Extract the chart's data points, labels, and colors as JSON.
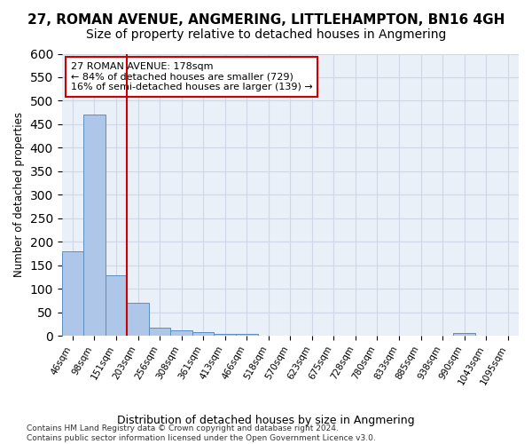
{
  "title": "27, ROMAN AVENUE, ANGMERING, LITTLEHAMPTON, BN16 4GH",
  "subtitle": "Size of property relative to detached houses in Angmering",
  "xlabel": "Distribution of detached houses by size in Angmering",
  "ylabel": "Number of detached properties",
  "bar_values": [
    180,
    470,
    128,
    70,
    18,
    12,
    7,
    5,
    5,
    0,
    0,
    0,
    0,
    0,
    0,
    0,
    0,
    0,
    6,
    0,
    0
  ],
  "categories": [
    "46sqm",
    "98sqm",
    "151sqm",
    "203sqm",
    "256sqm",
    "308sqm",
    "361sqm",
    "413sqm",
    "466sqm",
    "518sqm",
    "570sqm",
    "623sqm",
    "675sqm",
    "728sqm",
    "780sqm",
    "833sqm",
    "885sqm",
    "938sqm",
    "990sqm",
    "1043sqm",
    "1095sqm"
  ],
  "bar_color": "#aec6e8",
  "bar_edge_color": "#5a8fc2",
  "vline_color": "#cc0000",
  "vline_x": 2.5,
  "annotation_text": "27 ROMAN AVENUE: 178sqm\n← 84% of detached houses are smaller (729)\n16% of semi-detached houses are larger (139) →",
  "annotation_box_color": "#cc0000",
  "annotation_fontsize": 8,
  "ylim": [
    0,
    600
  ],
  "yticks": [
    0,
    50,
    100,
    150,
    200,
    250,
    300,
    350,
    400,
    450,
    500,
    550,
    600
  ],
  "grid_color": "#d0d8e8",
  "background_color": "#eaf0f8",
  "footer": "Contains HM Land Registry data © Crown copyright and database right 2024.\nContains public sector information licensed under the Open Government Licence v3.0.",
  "title_fontsize": 11,
  "subtitle_fontsize": 10
}
